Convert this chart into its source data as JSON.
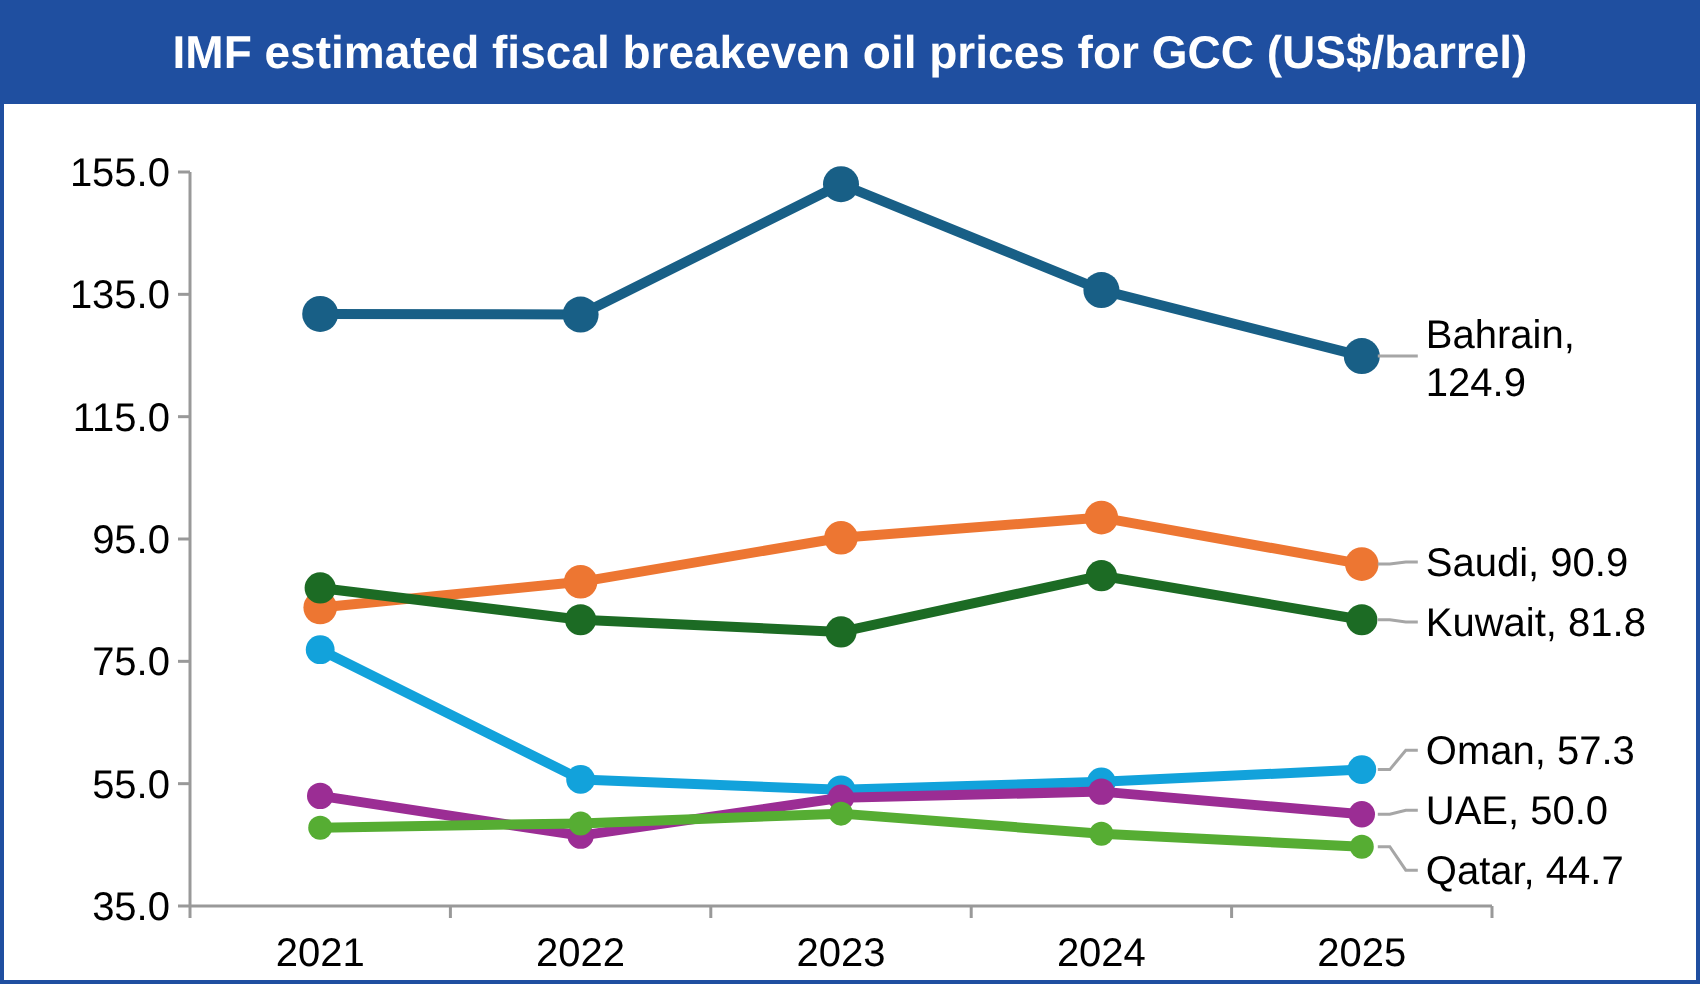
{
  "chart_data": {
    "type": "line",
    "title": "IMF estimated fiscal breakeven oil prices for GCC (US$/barrel)",
    "categories": [
      "2021",
      "2022",
      "2023",
      "2024",
      "2025"
    ],
    "series": [
      {
        "name": "Bahrain,",
        "color": "#185f86",
        "values": [
          131.8,
          131.7,
          153.0,
          135.7,
          124.9
        ],
        "value_labels": [
          null,
          null,
          null,
          null,
          "124.9"
        ]
      },
      {
        "name": "Saudi,",
        "color": "#ed7632",
        "values": [
          83.8,
          88.0,
          95.2,
          98.5,
          90.9
        ],
        "value_labels": [
          null,
          null,
          null,
          null,
          "90.9"
        ]
      },
      {
        "name": "Kuwait,",
        "color": "#1c6b24",
        "values": [
          87.0,
          81.8,
          79.8,
          89.0,
          81.8
        ],
        "value_labels": [
          null,
          null,
          null,
          null,
          "81.8"
        ]
      },
      {
        "name": "Oman,",
        "color": "#12a2db",
        "values": [
          76.9,
          55.7,
          54.0,
          55.3,
          57.3
        ],
        "value_labels": [
          null,
          null,
          null,
          null,
          "57.3"
        ]
      },
      {
        "name": "UAE,",
        "color": "#9b2d94",
        "values": [
          53.0,
          46.5,
          52.7,
          53.7,
          50.0
        ],
        "value_labels": [
          null,
          null,
          null,
          null,
          "50.0"
        ]
      },
      {
        "name": "Qatar,",
        "color": "#56ad33",
        "values": [
          47.8,
          48.5,
          50.1,
          46.8,
          44.7
        ],
        "value_labels": [
          null,
          null,
          null,
          null,
          "44.7"
        ]
      }
    ],
    "ylim": [
      35,
      155
    ],
    "yticks": [
      {
        "value": 35,
        "label": "35.0"
      },
      {
        "value": 55,
        "label": "55.0"
      },
      {
        "value": 75,
        "label": "75.0"
      },
      {
        "value": 95,
        "label": "95.0"
      },
      {
        "value": 115,
        "label": "115.0"
      },
      {
        "value": 135,
        "label": "135.0"
      },
      {
        "value": 155,
        "label": "155.0"
      }
    ],
    "grid": false,
    "marker": "circle",
    "line_style": "solid"
  }
}
